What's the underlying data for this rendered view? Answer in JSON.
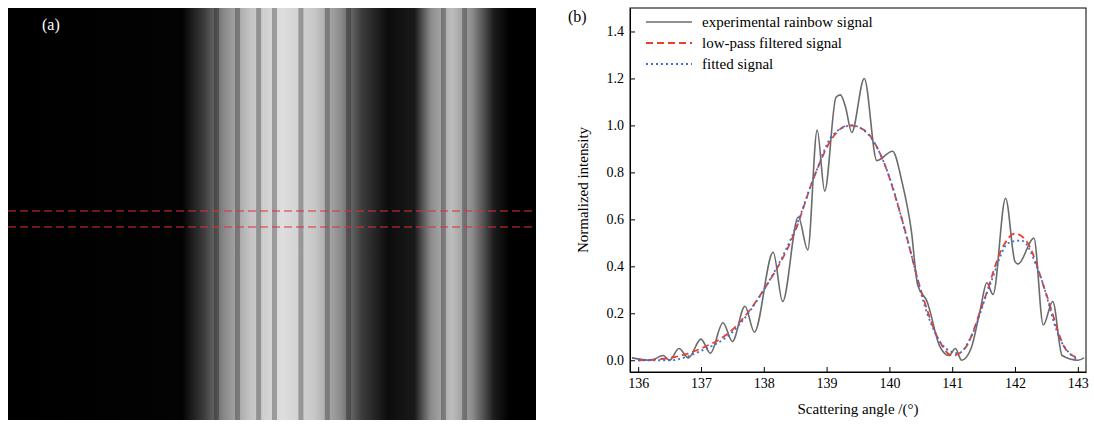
{
  "image": {
    "label": "(a)"
  },
  "chart_data": {
    "type": "line",
    "panel_label": "(b)",
    "x_label": "Scattering angle /(°)",
    "y_label": "Normalized intensity",
    "xlim": [
      135.87,
      143.13
    ],
    "ylim": [
      -0.05,
      1.5
    ],
    "xticks": [
      136,
      137,
      138,
      139,
      140,
      141,
      142,
      143
    ],
    "yticks": [
      {
        "value": 0,
        "label": "0.0"
      },
      {
        "value": 0.2,
        "label": "0.2"
      },
      {
        "value": 0.4,
        "label": "0.4"
      },
      {
        "value": 0.6,
        "label": "0.6"
      },
      {
        "value": 0.8,
        "label": "0.8"
      },
      {
        "value": 1,
        "label": "1.0"
      },
      {
        "value": 1.2,
        "label": "1.2"
      },
      {
        "value": 1.4,
        "label": "1.4"
      }
    ],
    "legend": "upper left",
    "series": [
      {
        "name": "experimental rainbow signal",
        "color": "#6b6b6b",
        "line_style": "solid",
        "x": [
          135.9,
          136.2,
          136.4,
          136.5,
          136.65,
          136.8,
          137.0,
          137.15,
          137.35,
          137.5,
          137.7,
          137.85,
          138.15,
          138.3,
          138.55,
          138.7,
          138.85,
          138.97,
          139.15,
          139.22,
          139.3,
          139.4,
          139.6,
          139.8,
          140.05,
          140.2,
          140.35,
          140.45,
          140.6,
          140.8,
          140.95,
          141.05,
          141.15,
          141.3,
          141.45,
          141.55,
          141.65,
          141.85,
          142.0,
          142.05,
          142.3,
          142.45,
          142.6,
          142.75,
          143.0,
          143.1
        ],
        "values": [
          0.01,
          0.0,
          0.02,
          0.0,
          0.05,
          0.01,
          0.09,
          0.03,
          0.16,
          0.08,
          0.23,
          0.12,
          0.46,
          0.25,
          0.61,
          0.47,
          0.98,
          0.72,
          1.12,
          1.13,
          1.08,
          0.97,
          1.2,
          0.85,
          0.89,
          0.76,
          0.55,
          0.32,
          0.25,
          0.06,
          0.02,
          0.05,
          0.0,
          0.05,
          0.22,
          0.33,
          0.28,
          0.69,
          0.42,
          0.41,
          0.52,
          0.15,
          0.25,
          0.02,
          0.0,
          0.01
        ]
      },
      {
        "name": "low-pass filtered signal",
        "color": "#e8402a",
        "line_style": "dashed",
        "x": [
          136.0,
          136.5,
          137.0,
          137.5,
          138.0,
          138.5,
          138.8,
          139.1,
          139.35,
          139.6,
          139.9,
          140.2,
          140.5,
          140.8,
          141.0,
          141.2,
          141.5,
          141.8,
          142.0,
          142.2,
          142.5,
          142.8,
          143.0
        ],
        "values": [
          0.0,
          0.01,
          0.05,
          0.13,
          0.3,
          0.55,
          0.78,
          0.95,
          1.0,
          0.98,
          0.85,
          0.6,
          0.3,
          0.08,
          0.02,
          0.05,
          0.25,
          0.48,
          0.54,
          0.5,
          0.28,
          0.05,
          0.01
        ]
      },
      {
        "name": "fitted signal",
        "color": "#3a6fd8",
        "line_style": "dotted",
        "x": [
          136.0,
          136.5,
          137.0,
          137.5,
          138.0,
          138.5,
          138.8,
          139.1,
          139.4,
          139.7,
          140.0,
          140.3,
          140.6,
          140.9,
          141.1,
          141.3,
          141.6,
          141.9,
          142.1,
          142.4,
          142.7,
          143.0
        ],
        "values": [
          0.0,
          0.0,
          0.04,
          0.12,
          0.3,
          0.56,
          0.78,
          0.96,
          1.0,
          0.95,
          0.78,
          0.5,
          0.2,
          0.05,
          0.03,
          0.1,
          0.32,
          0.5,
          0.51,
          0.36,
          0.1,
          0.0
        ]
      }
    ]
  }
}
